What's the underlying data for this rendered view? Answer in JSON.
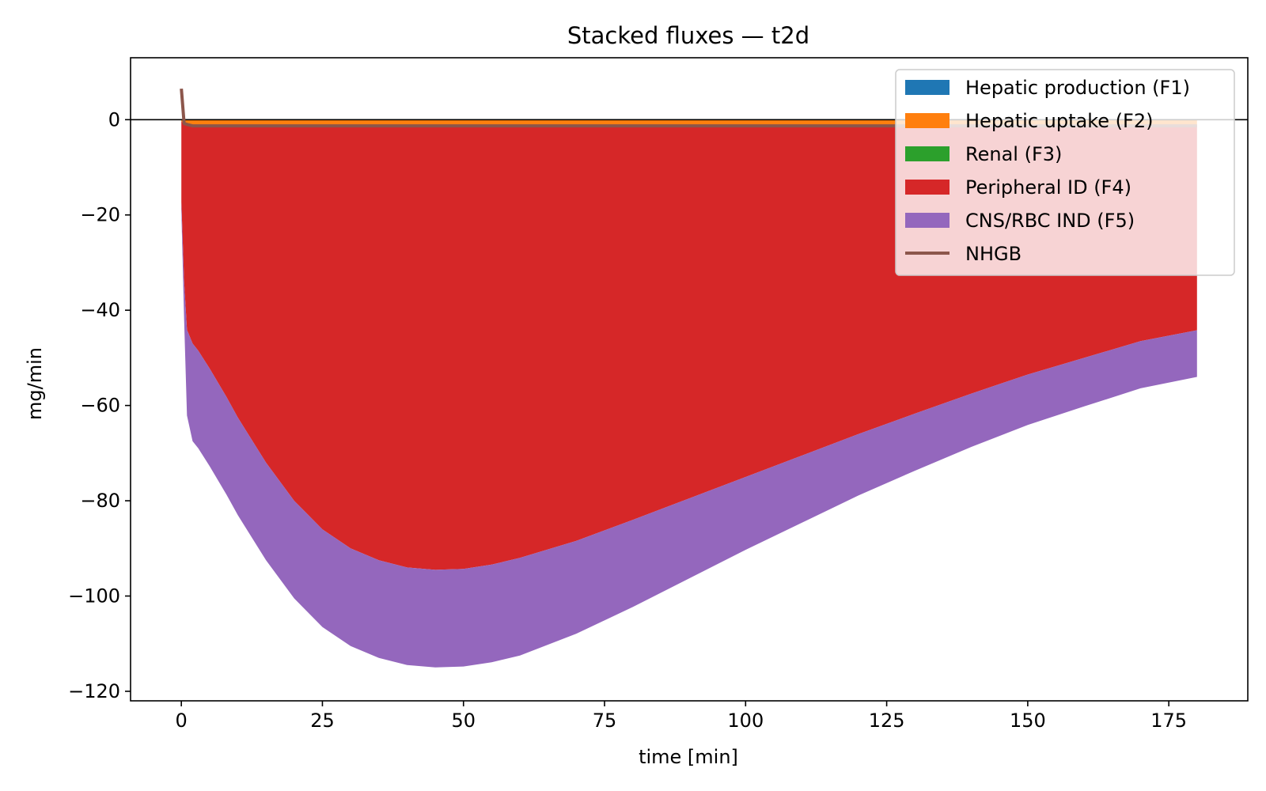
{
  "chart_data": {
    "type": "area",
    "title": "Stacked fluxes — t2d",
    "xlabel": "time [min]",
    "ylabel": "mg/min",
    "xlim": [
      -9,
      189
    ],
    "ylim": [
      -122,
      13
    ],
    "xticks": [
      0,
      25,
      50,
      75,
      100,
      125,
      150,
      175
    ],
    "yticks": [
      0,
      -20,
      -40,
      -60,
      -80,
      -100,
      -120
    ],
    "xtick_labels": [
      "0",
      "25",
      "50",
      "75",
      "100",
      "125",
      "150",
      "175"
    ],
    "ytick_labels": [
      "0",
      "−20",
      "−40",
      "−60",
      "−80",
      "−100",
      "−120"
    ],
    "zero_line": true,
    "legend_position": "top-right",
    "x": [
      0,
      0.5,
      1,
      2,
      3,
      5,
      8,
      10,
      15,
      20,
      25,
      30,
      35,
      40,
      45,
      50,
      55,
      60,
      70,
      80,
      90,
      100,
      110,
      120,
      130,
      140,
      150,
      160,
      170,
      180
    ],
    "series": [
      {
        "name": "Hepatic production (F1)",
        "kind": "area",
        "color": "#1f77b4",
        "values": [
          0,
          0,
          0,
          0,
          0,
          0,
          0,
          0,
          0,
          0,
          0,
          0,
          0,
          0,
          0,
          0,
          0,
          0,
          0,
          0,
          0,
          0,
          0,
          0,
          0,
          0,
          0,
          0,
          0,
          0
        ]
      },
      {
        "name": "Hepatic uptake (F2)",
        "kind": "area",
        "color": "#ff7f0e",
        "values": [
          -0.3,
          -1.0,
          -1.1,
          -1.2,
          -1.2,
          -1.2,
          -1.2,
          -1.2,
          -1.2,
          -1.2,
          -1.2,
          -1.2,
          -1.2,
          -1.2,
          -1.2,
          -1.2,
          -1.2,
          -1.2,
          -1.2,
          -1.2,
          -1.2,
          -1.2,
          -1.2,
          -1.2,
          -1.2,
          -1.2,
          -1.2,
          -1.2,
          -1.2,
          -1.2
        ]
      },
      {
        "name": "Renal (F3)",
        "kind": "area",
        "color": "#2ca02c",
        "values": [
          0,
          0,
          0,
          0,
          0,
          0,
          0,
          0,
          0,
          0,
          0,
          0,
          0,
          0,
          0,
          0,
          0,
          0,
          0,
          0,
          0,
          0,
          0,
          0,
          0,
          0,
          0,
          0,
          0,
          0
        ]
      },
      {
        "name": "Peripheral ID (F4)",
        "kind": "area",
        "color": "#d62728",
        "values": [
          -17,
          -33,
          -43,
          -45.8,
          -47.3,
          -51,
          -57,
          -61.3,
          -70.8,
          -78.8,
          -84.8,
          -88.8,
          -91.3,
          -92.8,
          -93.3,
          -93.1,
          -92.2,
          -90.8,
          -87.2,
          -82.8,
          -78.3,
          -73.8,
          -69.3,
          -64.8,
          -60.5,
          -56.3,
          -52.3,
          -48.8,
          -45.3,
          -43
        ]
      },
      {
        "name": "CNS/RBC IND (F5)",
        "kind": "area",
        "color": "#9467bd",
        "values": [
          -2,
          -8,
          -18,
          -20.5,
          -20.5,
          -20.5,
          -20.5,
          -20.5,
          -20.5,
          -20.5,
          -20.5,
          -20.5,
          -20.5,
          -20.5,
          -20.5,
          -20.5,
          -20.5,
          -20.5,
          -19.5,
          -18.3,
          -16.8,
          -15.3,
          -14.1,
          -12.9,
          -12,
          -11.2,
          -10.6,
          -10.2,
          -9.9,
          -9.8
        ]
      },
      {
        "name": "NHGB",
        "kind": "line",
        "color": "#8c564b",
        "values": [
          6.5,
          -0.8,
          -1.0,
          -1.3,
          -1.3,
          -1.3,
          -1.3,
          -1.3,
          -1.3,
          -1.3,
          -1.3,
          -1.3,
          -1.3,
          -1.3,
          -1.3,
          -1.3,
          -1.3,
          -1.3,
          -1.3,
          -1.3,
          -1.3,
          -1.3,
          -1.3,
          -1.3,
          -1.3,
          -1.3,
          -1.3,
          -1.3,
          -1.3,
          -1.3
        ]
      }
    ]
  }
}
